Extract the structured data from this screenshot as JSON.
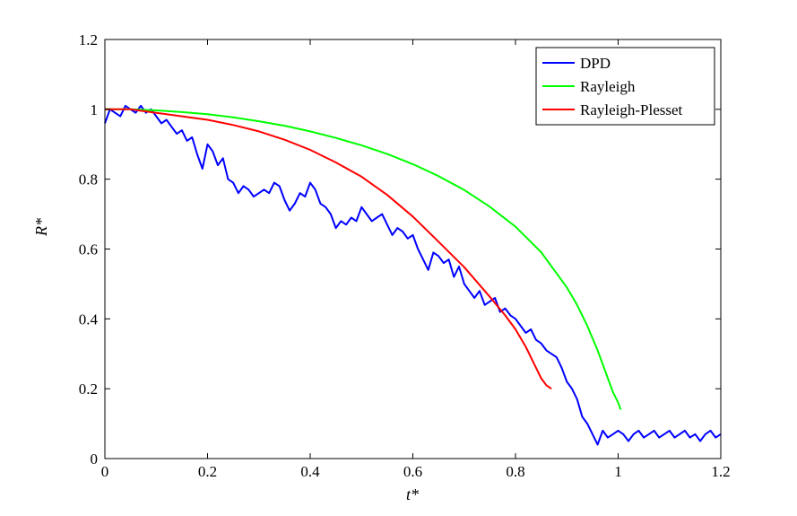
{
  "chart_data": {
    "type": "line",
    "title": "",
    "xlabel": "t*",
    "ylabel": "R*",
    "xlim": [
      0,
      1.2
    ],
    "ylim": [
      0,
      1.2
    ],
    "xticks": [
      "0",
      "0.2",
      "0.4",
      "0.6",
      "0.8",
      "1",
      "1.2"
    ],
    "yticks": [
      "0",
      "0.2",
      "0.4",
      "0.6",
      "0.8",
      "1",
      "1.2"
    ],
    "grid": false,
    "legend_position": "top-right",
    "series": [
      {
        "name": "DPD",
        "color": "#0000ff",
        "x": [
          0,
          0.01,
          0.02,
          0.03,
          0.04,
          0.05,
          0.06,
          0.07,
          0.08,
          0.09,
          0.1,
          0.11,
          0.12,
          0.13,
          0.14,
          0.15,
          0.16,
          0.17,
          0.18,
          0.19,
          0.2,
          0.21,
          0.22,
          0.23,
          0.24,
          0.25,
          0.26,
          0.27,
          0.28,
          0.29,
          0.3,
          0.31,
          0.32,
          0.33,
          0.34,
          0.35,
          0.36,
          0.37,
          0.38,
          0.39,
          0.4,
          0.41,
          0.42,
          0.43,
          0.44,
          0.45,
          0.46,
          0.47,
          0.48,
          0.49,
          0.5,
          0.51,
          0.52,
          0.53,
          0.54,
          0.55,
          0.56,
          0.57,
          0.58,
          0.59,
          0.6,
          0.61,
          0.62,
          0.63,
          0.64,
          0.65,
          0.66,
          0.67,
          0.68,
          0.69,
          0.7,
          0.71,
          0.72,
          0.73,
          0.74,
          0.75,
          0.76,
          0.77,
          0.78,
          0.79,
          0.8,
          0.81,
          0.82,
          0.83,
          0.84,
          0.85,
          0.86,
          0.87,
          0.88,
          0.89,
          0.9,
          0.91,
          0.92,
          0.93,
          0.94,
          0.95,
          0.96,
          0.97,
          0.98,
          0.99,
          1.0,
          1.01,
          1.02,
          1.03,
          1.04,
          1.05,
          1.06,
          1.07,
          1.08,
          1.09,
          1.1,
          1.11,
          1.12,
          1.13,
          1.14,
          1.15,
          1.16,
          1.17,
          1.18,
          1.19,
          1.2
        ],
        "y": [
          0.96,
          1.0,
          0.99,
          0.98,
          1.01,
          1.0,
          0.99,
          1.01,
          0.99,
          1.0,
          0.98,
          0.96,
          0.97,
          0.95,
          0.93,
          0.94,
          0.91,
          0.92,
          0.87,
          0.83,
          0.9,
          0.88,
          0.84,
          0.86,
          0.8,
          0.79,
          0.76,
          0.78,
          0.77,
          0.75,
          0.76,
          0.77,
          0.76,
          0.79,
          0.78,
          0.74,
          0.71,
          0.73,
          0.76,
          0.75,
          0.79,
          0.77,
          0.73,
          0.72,
          0.7,
          0.66,
          0.68,
          0.67,
          0.69,
          0.68,
          0.72,
          0.7,
          0.68,
          0.69,
          0.7,
          0.67,
          0.64,
          0.66,
          0.65,
          0.63,
          0.64,
          0.6,
          0.57,
          0.54,
          0.59,
          0.58,
          0.56,
          0.57,
          0.52,
          0.55,
          0.5,
          0.48,
          0.46,
          0.48,
          0.44,
          0.45,
          0.46,
          0.42,
          0.43,
          0.41,
          0.4,
          0.38,
          0.36,
          0.37,
          0.34,
          0.33,
          0.31,
          0.3,
          0.29,
          0.26,
          0.22,
          0.2,
          0.17,
          0.12,
          0.1,
          0.07,
          0.04,
          0.08,
          0.06,
          0.07,
          0.08,
          0.07,
          0.05,
          0.07,
          0.08,
          0.06,
          0.07,
          0.08,
          0.06,
          0.07,
          0.08,
          0.06,
          0.07,
          0.08,
          0.06,
          0.07,
          0.05,
          0.07,
          0.08,
          0.06,
          0.07
        ]
      },
      {
        "name": "Rayleigh",
        "color": "#00ff00",
        "x": [
          0,
          0.05,
          0.1,
          0.15,
          0.2,
          0.25,
          0.3,
          0.35,
          0.4,
          0.45,
          0.5,
          0.55,
          0.6,
          0.65,
          0.7,
          0.75,
          0.8,
          0.85,
          0.9,
          0.92,
          0.94,
          0.96,
          0.97,
          0.98,
          0.99,
          1.0,
          1.005
        ],
        "y": [
          1.0,
          1.0,
          0.997,
          0.992,
          0.986,
          0.977,
          0.966,
          0.953,
          0.937,
          0.918,
          0.897,
          0.872,
          0.843,
          0.809,
          0.769,
          0.721,
          0.664,
          0.591,
          0.49,
          0.44,
          0.38,
          0.31,
          0.27,
          0.23,
          0.19,
          0.16,
          0.14
        ]
      },
      {
        "name": "Rayleigh-Plesset",
        "color": "#ff0000",
        "x": [
          0,
          0.05,
          0.1,
          0.15,
          0.2,
          0.25,
          0.3,
          0.35,
          0.4,
          0.45,
          0.5,
          0.55,
          0.6,
          0.65,
          0.7,
          0.75,
          0.78,
          0.8,
          0.82,
          0.84,
          0.85,
          0.86,
          0.87
        ],
        "y": [
          1.0,
          1.0,
          0.99,
          0.98,
          0.97,
          0.955,
          0.937,
          0.913,
          0.884,
          0.848,
          0.807,
          0.755,
          0.693,
          0.621,
          0.548,
          0.463,
          0.41,
          0.37,
          0.32,
          0.26,
          0.23,
          0.21,
          0.2
        ]
      }
    ]
  }
}
